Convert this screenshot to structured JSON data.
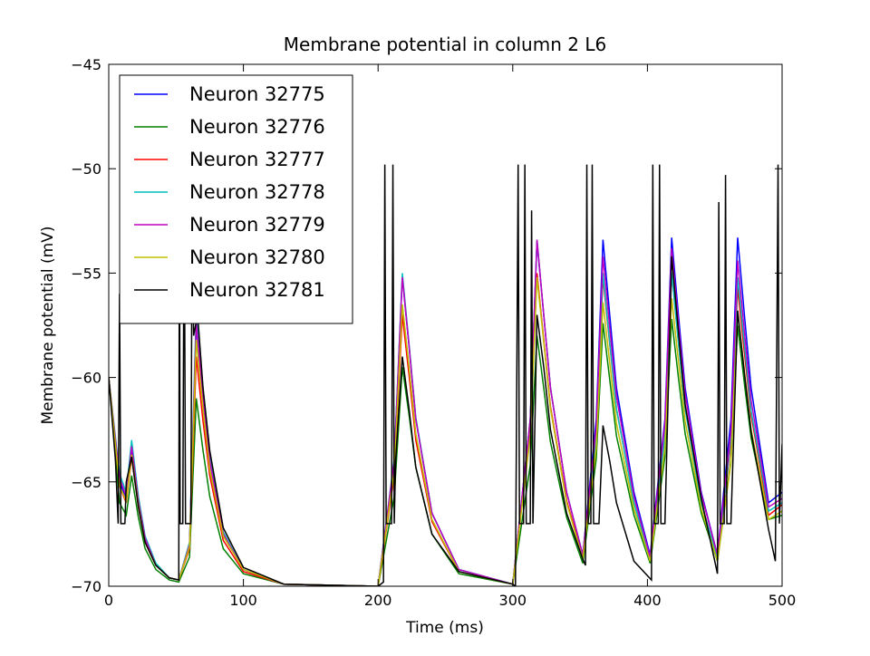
{
  "chart_data": {
    "type": "line",
    "title": "Membrane potential in column 2 L6",
    "x_label": "Time (ms)",
    "y_label": "Membrane potential (mV)",
    "xlim": [
      0,
      500
    ],
    "ylim": [
      -70,
      -45
    ],
    "xticks": [
      0,
      100,
      200,
      300,
      400,
      500
    ],
    "yticks": [
      {
        "value": -70,
        "label": "−70"
      },
      {
        "value": -65,
        "label": "−65"
      },
      {
        "value": -60,
        "label": "−60"
      },
      {
        "value": -55,
        "label": "−55"
      },
      {
        "value": -50,
        "label": "−50"
      },
      {
        "value": -45,
        "label": "−45"
      }
    ],
    "legend": "upper left",
    "x": [
      0,
      8,
      13,
      17,
      22,
      27,
      35,
      45,
      52,
      60,
      65,
      70,
      75,
      85,
      100,
      130,
      200,
      212,
      218,
      223,
      228,
      240,
      260,
      300,
      313,
      318,
      323,
      328,
      340,
      352,
      362,
      367,
      372,
      377,
      390,
      402,
      413,
      418,
      423,
      428,
      440,
      452,
      462,
      467,
      472,
      477,
      490,
      500
    ],
    "series": [
      {
        "name": "Neuron 32775",
        "color": "#0000ff",
        "values": [
          -60,
          -65,
          -65.8,
          -63.5,
          -66,
          -67.8,
          -69,
          -69.6,
          -69.7,
          -68,
          -57.5,
          -61,
          -64,
          -67.5,
          -69.2,
          -69.9,
          -70,
          -64,
          -55.2,
          -58.5,
          -62,
          -66.5,
          -69.2,
          -69.9,
          -62,
          -53.5,
          -57,
          -60.5,
          -65.5,
          -68.5,
          -62,
          -53.4,
          -57,
          -60.5,
          -65.5,
          -68.5,
          -62,
          -53.3,
          -57,
          -60.5,
          -65.5,
          -68.5,
          -62,
          -53.3,
          -57,
          -60.5,
          -66,
          -65.5
        ]
      },
      {
        "name": "Neuron 32776",
        "color": "#008000",
        "values": [
          -60,
          -66,
          -66.6,
          -64.7,
          -66.7,
          -68.2,
          -69.2,
          -69.7,
          -69.8,
          -68.6,
          -61,
          -63.5,
          -65.7,
          -68.2,
          -69.4,
          -69.9,
          -70,
          -65.7,
          -59.5,
          -61.8,
          -64.3,
          -67.5,
          -69.4,
          -69.9,
          -64.2,
          -58,
          -60.5,
          -63.1,
          -66.7,
          -68.9,
          -63.9,
          -57.4,
          -60.1,
          -62.8,
          -66.6,
          -68.9,
          -63.8,
          -57.2,
          -60,
          -62.7,
          -66.5,
          -68.8,
          -64,
          -57.5,
          -60.3,
          -62.9,
          -66.8,
          -66.6
        ]
      },
      {
        "name": "Neuron 32777",
        "color": "#ff0000",
        "values": [
          -60,
          -65.2,
          -66,
          -63.8,
          -66.2,
          -67.9,
          -69,
          -69.6,
          -69.7,
          -68.2,
          -59,
          -62.1,
          -64.7,
          -67.8,
          -69.3,
          -69.9,
          -70,
          -64.7,
          -57,
          -59.9,
          -63,
          -66.9,
          -69.3,
          -69.9,
          -62.7,
          -55,
          -58.2,
          -61.4,
          -65.9,
          -68.6,
          -62.9,
          -55.2,
          -58.4,
          -61.5,
          -66,
          -68.7,
          -62.8,
          -55,
          -58.3,
          -61.5,
          -66,
          -68.7,
          -63.1,
          -55.7,
          -58.8,
          -61.8,
          -66.6,
          -66.1
        ]
      },
      {
        "name": "Neuron 32778",
        "color": "#00bfbf",
        "values": [
          -60,
          -64.6,
          -65.5,
          -63,
          -65.7,
          -67.6,
          -68.9,
          -69.6,
          -69.7,
          -67.9,
          -56.8,
          -60.5,
          -63.6,
          -67.4,
          -69.2,
          -69.9,
          -70,
          -63.9,
          -55,
          -58.4,
          -61.9,
          -66.5,
          -69.2,
          -69.9,
          -62,
          -53.4,
          -57,
          -60.5,
          -65.5,
          -68.5,
          -62.8,
          -55,
          -58.3,
          -61.5,
          -66,
          -68.7,
          -62.8,
          -55,
          -58.3,
          -61.5,
          -66,
          -68.7,
          -62.9,
          -55.2,
          -58.4,
          -61.6,
          -66.4,
          -66
        ]
      },
      {
        "name": "Neuron 32779",
        "color": "#bf00bf",
        "values": [
          -60,
          -64.8,
          -65.7,
          -63.3,
          -65.9,
          -67.7,
          -69,
          -69.6,
          -69.7,
          -68,
          -57.4,
          -61,
          -64,
          -67.5,
          -69.2,
          -69.9,
          -70,
          -64,
          -55.2,
          -58.5,
          -62,
          -66.5,
          -69.2,
          -69.9,
          -62,
          -53.4,
          -57,
          -60.5,
          -65.5,
          -68.5,
          -62.4,
          -54.2,
          -57.6,
          -60.9,
          -65.7,
          -68.6,
          -62.2,
          -53.8,
          -57.4,
          -60.8,
          -65.6,
          -68.5,
          -62.6,
          -54.4,
          -57.8,
          -61.1,
          -66.2,
          -65.8
        ]
      },
      {
        "name": "Neuron 32780",
        "color": "#bfbf00",
        "values": [
          -60,
          -65.2,
          -65.9,
          -63.7,
          -66.1,
          -67.9,
          -69,
          -69.6,
          -69.7,
          -68.1,
          -58.2,
          -61.5,
          -64.4,
          -67.6,
          -69.2,
          -69.9,
          -70,
          -64.5,
          -56.5,
          -59.5,
          -62.7,
          -66.8,
          -69.3,
          -69.9,
          -62.8,
          -55.2,
          -58.3,
          -61.5,
          -66,
          -68.7,
          -63.4,
          -56.4,
          -59.3,
          -62.2,
          -66.3,
          -68.8,
          -63.4,
          -56.2,
          -59.2,
          -62.1,
          -66.3,
          -68.8,
          -64.1,
          -56.8,
          -59.7,
          -62.5,
          -66.8,
          -66.4
        ]
      },
      {
        "name": "Neuron 32781",
        "color": "#000000",
        "x": [
          0,
          5,
          7,
          8,
          9,
          12,
          13,
          17,
          22,
          27,
          35,
          45,
          52,
          52.5,
          53,
          55,
          56,
          57,
          61,
          62,
          63,
          66,
          70,
          75,
          85,
          100,
          130,
          200,
          204,
          205,
          206,
          210,
          211,
          212,
          213,
          216,
          218,
          223,
          228,
          240,
          260,
          300,
          302,
          304,
          305,
          308,
          309,
          310,
          313,
          314,
          315,
          318,
          323,
          328,
          340,
          352,
          354,
          355,
          356,
          358,
          359,
          360,
          364,
          367,
          372,
          377,
          390,
          403,
          404,
          405,
          408,
          409,
          410,
          413,
          418,
          423,
          428,
          440,
          452,
          453,
          454,
          457,
          458,
          459,
          462,
          467,
          472,
          477,
          490,
          495,
          497,
          498,
          500
        ],
        "values": [
          -60,
          -64,
          -67,
          -56,
          -67,
          -67,
          -65,
          -63.8,
          -66.2,
          -67.9,
          -69,
          -69.6,
          -69.7,
          -50,
          -67,
          -67,
          -50,
          -67,
          -67,
          -50,
          -58,
          -57,
          -60.5,
          -63.5,
          -67.2,
          -69.1,
          -69.9,
          -70,
          -69.8,
          -49.8,
          -67,
          -67,
          -49.8,
          -67,
          -64,
          -61,
          -59,
          -61.5,
          -64.3,
          -67.5,
          -69.3,
          -69.9,
          -70,
          -49.8,
          -67,
          -67,
          -49.8,
          -67,
          -67,
          -52,
          -67,
          -57,
          -59.5,
          -62.5,
          -66.5,
          -68.7,
          -69,
          -49.8,
          -67,
          -67,
          -49.8,
          -67,
          -67,
          -62.3,
          -64,
          -66,
          -68.8,
          -69.7,
          -49.8,
          -67,
          -67,
          -49.8,
          -67,
          -67,
          -54.2,
          -57.8,
          -61.3,
          -65.8,
          -69.4,
          -51.6,
          -67,
          -67,
          -50.3,
          -67,
          -67,
          -56.8,
          -59.8,
          -62.6,
          -67.3,
          -68.8,
          -49.8,
          -67,
          -63.2
        ]
      }
    ]
  }
}
